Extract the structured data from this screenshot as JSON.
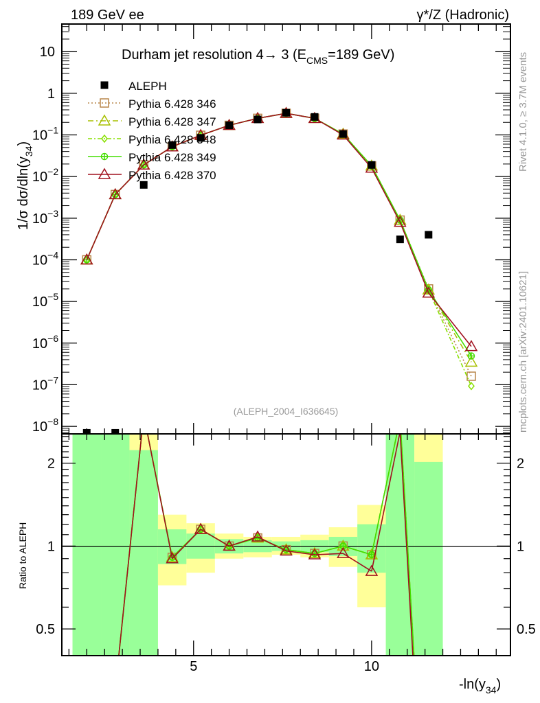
{
  "header": {
    "left": "189 GeV ee",
    "right": "γ*/Z (Hadronic)"
  },
  "side_text": {
    "rivet": "Rivet 4.1.0, ≥ 3.7M events",
    "mcplots": "mcplots.cern.ch [arXiv:2401.10621]"
  },
  "chart_data": {
    "type": "line",
    "title": "Durham jet resolution 4→ 3 (E_CMS=189 GeV)",
    "title_parts": {
      "main": "Durham jet resolution 4→  3 (E",
      "sub": "CMS",
      "tail": "=189 GeV)"
    },
    "analysis_id": "(ALEPH_2004_I636645)",
    "xlabel": {
      "main": "-ln(y",
      "sub": "34",
      "tail": ")"
    },
    "ylabel": {
      "main": "1/σ  dσ/dln(y",
      "sub": "34",
      "tail": ")"
    },
    "ratio_ylabel": "Ratio to ALEPH",
    "xlim": [
      1.3,
      13.9
    ],
    "ylim": [
      6.6e-09,
      46
    ],
    "yscale": "log",
    "ratio_ylim": [
      0.4,
      2.54
    ],
    "ratio_yscale": "log",
    "x_ticks": [
      {
        "v": 5,
        "label": "5"
      },
      {
        "v": 10,
        "label": "10"
      }
    ],
    "y_ticks": [
      {
        "v": 10,
        "label": "10",
        "exp": ""
      },
      {
        "v": 1,
        "label": "1",
        "exp": ""
      },
      {
        "v": 0.1,
        "label": "10",
        "exp": "−1"
      },
      {
        "v": 0.01,
        "label": "10",
        "exp": "−2"
      },
      {
        "v": 0.001,
        "label": "10",
        "exp": "−3"
      },
      {
        "v": 0.0001,
        "label": "10",
        "exp": "−4"
      },
      {
        "v": 1e-05,
        "label": "10",
        "exp": "−5"
      },
      {
        "v": 1e-06,
        "label": "10",
        "exp": "−6"
      },
      {
        "v": 1e-07,
        "label": "10",
        "exp": "−7"
      },
      {
        "v": 1e-08,
        "label": "10",
        "exp": "−8"
      }
    ],
    "ratio_ticks": [
      {
        "v": 2,
        "label": "2"
      },
      {
        "v": 1,
        "label": "1"
      },
      {
        "v": 0.5,
        "label": "0.5"
      }
    ],
    "data": {
      "name": "ALEPH",
      "x": [
        2.0,
        2.8,
        3.6,
        4.4,
        5.2,
        6.0,
        6.8,
        7.6,
        8.4,
        9.2,
        10.0,
        10.8,
        11.6
      ],
      "y": [
        7e-09,
        7e-09,
        0.0063,
        0.057,
        0.085,
        0.17,
        0.235,
        0.34,
        0.27,
        0.105,
        0.019,
        0.00031,
        0.0004
      ],
      "bin_edges": [
        1.6,
        2.4,
        3.2,
        4.0,
        4.8,
        5.6,
        6.4,
        7.2,
        8.0,
        8.8,
        9.6,
        10.4,
        11.2,
        12.0
      ],
      "stat_band": [
        [
          0.01,
          100
        ],
        [
          0.01,
          100
        ],
        [
          0.01,
          2.23
        ],
        [
          0.86,
          1.15
        ],
        [
          0.9,
          1.11
        ],
        [
          0.94,
          1.06
        ],
        [
          0.95,
          1.05
        ],
        [
          0.96,
          1.04
        ],
        [
          0.95,
          1.05
        ],
        [
          0.92,
          1.08
        ],
        [
          0.8,
          1.2
        ],
        [
          0.01,
          100
        ],
        [
          0.01,
          2.02
        ]
      ],
      "total_band": [
        [
          0.01,
          100
        ],
        [
          0.01,
          100
        ],
        [
          0.01,
          100
        ],
        [
          0.72,
          1.3
        ],
        [
          0.8,
          1.21
        ],
        [
          0.9,
          1.11
        ],
        [
          0.91,
          1.08
        ],
        [
          0.93,
          1.08
        ],
        [
          0.91,
          1.1
        ],
        [
          0.84,
          1.17
        ],
        [
          0.6,
          1.41
        ],
        [
          0.01,
          100
        ],
        [
          0.01,
          100
        ]
      ],
      "color": "#000000"
    },
    "x": [
      2.0,
      2.8,
      3.6,
      4.4,
      5.2,
      6.0,
      6.8,
      7.6,
      8.4,
      9.2,
      10.0,
      10.8,
      11.6,
      12.8
    ],
    "series": [
      {
        "name": "Pythia 6.428 346",
        "color": "#b8864a",
        "dash": "2,3",
        "marker": "square",
        "values": [
          0.0001,
          0.0037,
          0.019,
          0.052,
          0.098,
          0.17,
          0.25,
          0.33,
          0.25,
          0.105,
          0.018,
          0.0009,
          2e-05,
          1.6e-07
        ],
        "ratio": [
          0.1,
          0.3,
          3.0,
          0.91,
          1.15,
          1.0,
          1.07,
          0.97,
          0.94,
          1.0,
          0.93,
          2.9,
          0.05
        ]
      },
      {
        "name": "Pythia 6.428 347",
        "color": "#a8c000",
        "dash": "8,4,2,4",
        "marker": "triangle",
        "values": [
          0.0001,
          0.0037,
          0.019,
          0.052,
          0.098,
          0.17,
          0.25,
          0.33,
          0.25,
          0.105,
          0.018,
          0.0009,
          1.9e-05,
          3.5e-07
        ],
        "ratio": [
          0.1,
          0.3,
          3.0,
          0.91,
          1.15,
          1.0,
          1.07,
          0.97,
          0.94,
          1.0,
          0.93,
          2.9,
          0.05
        ]
      },
      {
        "name": "Pythia 6.428 348",
        "color": "#88e000",
        "dash": "6,3,2,3",
        "marker": "diamond",
        "values": [
          0.0001,
          0.0037,
          0.019,
          0.052,
          0.098,
          0.17,
          0.25,
          0.33,
          0.25,
          0.105,
          0.018,
          0.0009,
          1.9e-05,
          9.3e-08
        ],
        "ratio": [
          0.1,
          0.3,
          3.0,
          0.91,
          1.15,
          1.0,
          1.07,
          0.97,
          0.94,
          1.0,
          0.93,
          2.9,
          0.05
        ]
      },
      {
        "name": "Pythia 6.428 349",
        "color": "#44dd00",
        "dash": "",
        "marker": "circle-cross",
        "values": [
          0.0001,
          0.0037,
          0.019,
          0.052,
          0.098,
          0.17,
          0.25,
          0.33,
          0.25,
          0.105,
          0.018,
          0.0009,
          1.9e-05,
          4.9e-07
        ],
        "ratio": [
          0.1,
          0.3,
          3.0,
          0.91,
          1.15,
          1.0,
          1.07,
          0.97,
          0.94,
          1.0,
          0.93,
          2.9,
          0.05
        ]
      },
      {
        "name": "Pythia 6.428 370",
        "color": "#a0101e",
        "dash": "",
        "marker": "triangle",
        "values": [
          0.0001,
          0.0037,
          0.019,
          0.052,
          0.098,
          0.17,
          0.25,
          0.33,
          0.25,
          0.1,
          0.016,
          0.0008,
          1.6e-05,
          8.3e-07
        ],
        "ratio": [
          0.1,
          0.3,
          3.0,
          0.9,
          1.15,
          1.0,
          1.08,
          0.96,
          0.93,
          0.94,
          0.81,
          2.6,
          0.04
        ]
      }
    ],
    "legend": {
      "position": "top-left"
    },
    "band_colors": {
      "stat": "#99ff99",
      "total": "#ffff99"
    }
  }
}
